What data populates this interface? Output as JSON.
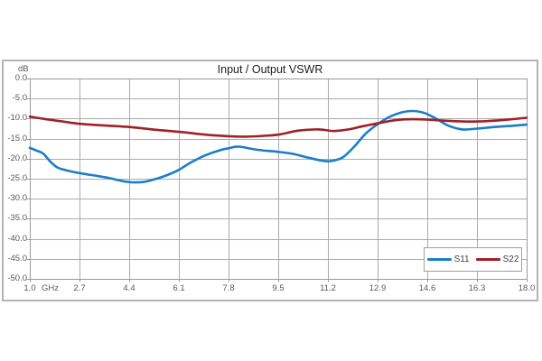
{
  "chart": {
    "title": "Input / Output VSWR",
    "y_unit": "dB",
    "x_unit": "GHz"
  },
  "colors": {
    "s11_line": "#1b7ec9",
    "s22_line": "#a02125",
    "gridline": "#ababab",
    "plot_border": "#9a9a9a",
    "card_border": "#b4b4b4",
    "axis_text": "#595959",
    "title_text": "#1e1e1e",
    "legend_text": "#3f3f3f",
    "background": "#ffffff"
  },
  "chart_data": {
    "type": "line",
    "title": "Input / Output VSWR",
    "grid": true,
    "legend_position": "inside-bottom-right",
    "x_axis": {
      "label": "GHz",
      "min": 1.0,
      "max": 18.0,
      "ticks": [
        1.0,
        2.7,
        4.4,
        6.1,
        7.8,
        9.5,
        11.2,
        12.9,
        14.6,
        16.3,
        18.0
      ],
      "tick_labels": [
        "1.0",
        "2.7",
        "4.4",
        "6.1",
        "7.8",
        "9.5",
        "11.2",
        "12.9",
        "14.6",
        "16.3",
        "18.0"
      ]
    },
    "y_axis": {
      "label": "dB",
      "min": -50.0,
      "max": 0.0,
      "ticks": [
        0,
        -5,
        -10,
        -15,
        -20,
        -25,
        -30,
        -35,
        -40,
        -45,
        -50
      ],
      "tick_labels": [
        "0.0",
        "-5.0",
        "-10.0",
        "-15.0",
        "-20.0",
        "-25.0",
        "-30.0",
        "-35.0",
        "-40.0",
        "-45.0",
        "-50.0"
      ]
    },
    "series": [
      {
        "name": "S11",
        "color": "#1b7ec9",
        "points": [
          [
            1.0,
            -17.3
          ],
          [
            1.2,
            -17.9
          ],
          [
            1.45,
            -18.7
          ],
          [
            1.7,
            -20.7
          ],
          [
            1.95,
            -22.2
          ],
          [
            2.3,
            -23.0
          ],
          [
            2.7,
            -23.6
          ],
          [
            3.2,
            -24.2
          ],
          [
            3.7,
            -24.8
          ],
          [
            4.1,
            -25.5
          ],
          [
            4.5,
            -25.9
          ],
          [
            4.9,
            -25.8
          ],
          [
            5.3,
            -25.1
          ],
          [
            5.7,
            -24.1
          ],
          [
            6.1,
            -22.8
          ],
          [
            6.5,
            -21.0
          ],
          [
            7.0,
            -19.2
          ],
          [
            7.5,
            -17.9
          ],
          [
            7.8,
            -17.4
          ],
          [
            8.15,
            -17.0
          ],
          [
            8.8,
            -17.8
          ],
          [
            9.5,
            -18.3
          ],
          [
            10.0,
            -18.8
          ],
          [
            10.5,
            -19.7
          ],
          [
            11.0,
            -20.5
          ],
          [
            11.3,
            -20.6
          ],
          [
            11.7,
            -19.7
          ],
          [
            12.1,
            -17.0
          ],
          [
            12.5,
            -13.7
          ],
          [
            12.9,
            -11.4
          ],
          [
            13.3,
            -9.6
          ],
          [
            13.7,
            -8.5
          ],
          [
            14.1,
            -8.1
          ],
          [
            14.5,
            -8.6
          ],
          [
            14.9,
            -10.0
          ],
          [
            15.3,
            -11.7
          ],
          [
            15.8,
            -12.7
          ],
          [
            16.3,
            -12.5
          ],
          [
            16.9,
            -12.1
          ],
          [
            17.5,
            -11.8
          ],
          [
            18.0,
            -11.5
          ]
        ]
      },
      {
        "name": "S22",
        "color": "#a02125",
        "points": [
          [
            1.0,
            -9.5
          ],
          [
            1.5,
            -10.1
          ],
          [
            2.1,
            -10.7
          ],
          [
            2.7,
            -11.3
          ],
          [
            3.5,
            -11.7
          ],
          [
            4.4,
            -12.1
          ],
          [
            5.2,
            -12.7
          ],
          [
            6.1,
            -13.3
          ],
          [
            7.0,
            -14.0
          ],
          [
            7.8,
            -14.4
          ],
          [
            8.4,
            -14.5
          ],
          [
            9.0,
            -14.3
          ],
          [
            9.5,
            -14.0
          ],
          [
            10.2,
            -13.0
          ],
          [
            10.9,
            -12.7
          ],
          [
            11.4,
            -13.1
          ],
          [
            11.9,
            -12.7
          ],
          [
            12.4,
            -11.9
          ],
          [
            12.9,
            -11.2
          ],
          [
            13.5,
            -10.4
          ],
          [
            14.1,
            -10.15
          ],
          [
            14.7,
            -10.3
          ],
          [
            15.4,
            -10.6
          ],
          [
            16.1,
            -10.75
          ],
          [
            16.7,
            -10.6
          ],
          [
            17.3,
            -10.3
          ],
          [
            18.0,
            -9.8
          ]
        ]
      }
    ]
  },
  "legend": {
    "items": [
      {
        "label": "S11"
      },
      {
        "label": "S22"
      }
    ]
  }
}
